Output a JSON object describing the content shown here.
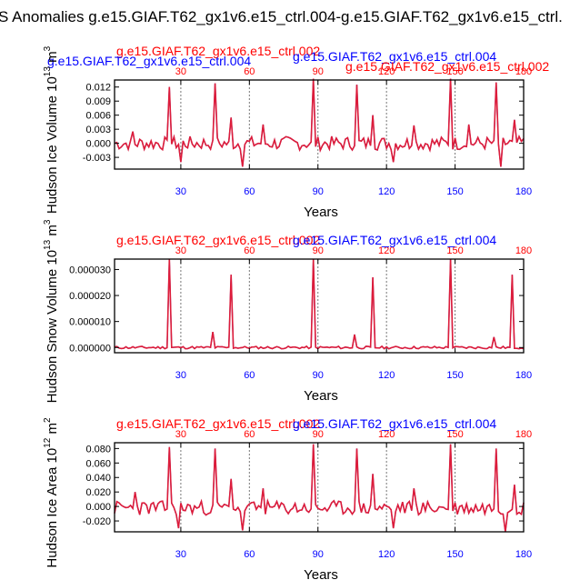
{
  "title": "S Anomalies g.e15.GIAF.T62_gx1v6.e15_ctrl.004-g.e15.GIAF.T62_gx1v6.e15_ctrl.",
  "colors": {
    "blue": "#0000ff",
    "red": "#ff0000",
    "line_red": "#dd1c3a",
    "line_blue": "#3a3acc",
    "axis": "#000000",
    "ref": "#777777"
  },
  "chart_data": [
    {
      "type": "line",
      "ylabel": "Hudson Ice Volume 10",
      "ylabel_sup": "13",
      "ylabel_unit": " m",
      "ylabel_unit_sup": "3",
      "xlabel": "Years",
      "legend_left": "g.e15.GIAF.T62_gx1v6.e15_ctrl.004",
      "legend_left_over": "g.e15.GIAF.T62_gx1v6.e15_ctrl.002",
      "legend_mid": "g.e15.GIAF.T62_gx1v6.e15_ctrl.004",
      "legend_right": "g.e15.GIAF.T62_gx1v6.e15_ctrl.002",
      "top_ticks": [
        "30",
        "60",
        "90",
        "120",
        "150",
        "180"
      ],
      "bottom_ticks": [
        "30",
        "60",
        "90",
        "120",
        "150",
        "180"
      ],
      "ytick_labels": [
        "0.012",
        "0.009",
        "0.006",
        "0.003",
        "0.000",
        "-0.003"
      ],
      "ytick_values": [
        0.012,
        0.009,
        0.006,
        0.003,
        0.0,
        -0.003
      ],
      "xlim": [
        1,
        180
      ],
      "ylim": [
        -0.0055,
        0.0135
      ],
      "ref_years": [
        30,
        60,
        90,
        120,
        150
      ],
      "peaks": [
        [
          25,
          0.012
        ],
        [
          45,
          0.0128
        ],
        [
          88,
          0.0138
        ],
        [
          107,
          0.0125
        ],
        [
          148,
          0.0138
        ],
        [
          168,
          0.013
        ],
        [
          52,
          0.0055
        ],
        [
          114,
          0.006
        ],
        [
          156,
          0.004
        ],
        [
          9,
          0.0025
        ],
        [
          66,
          0.004
        ],
        [
          132,
          0.0038
        ],
        [
          176,
          0.005
        ]
      ],
      "base": 0.0,
      "noise": 0.0015,
      "dips": [
        [
          30,
          -0.004
        ],
        [
          57,
          -0.005
        ],
        [
          123,
          -0.004
        ],
        [
          170,
          -0.005
        ]
      ],
      "seed": 7
    },
    {
      "type": "line",
      "ylabel": "Hudson Snow Volume 10",
      "ylabel_sup": "13",
      "ylabel_unit": " m",
      "ylabel_unit_sup": "3",
      "xlabel": "Years",
      "legend_left": "g.e15.GIAF.T62_gx1v6.e15_ctrl.002",
      "legend_left_over": "",
      "legend_mid": "g.e15.GIAF.T62_gx1v6.e15_ctrl.004",
      "legend_right": "",
      "top_ticks": [
        "30",
        "60",
        "90",
        "120",
        "150",
        "180"
      ],
      "bottom_ticks": [
        "30",
        "60",
        "90",
        "120",
        "150",
        "180"
      ],
      "ytick_labels": [
        "0.000030",
        "0.000020",
        "0.000010",
        "0.000000"
      ],
      "ytick_values": [
        3e-05,
        2e-05,
        1e-05,
        0.0
      ],
      "xlim": [
        1,
        180
      ],
      "ylim": [
        -2e-06,
        3.4e-05
      ],
      "ref_years": [
        30,
        60,
        90,
        120,
        150
      ],
      "peaks": [
        [
          25,
          3.4e-05
        ],
        [
          52,
          2.8e-05
        ],
        [
          88,
          3.4e-05
        ],
        [
          114,
          2.7e-05
        ],
        [
          148,
          3.4e-05
        ],
        [
          175,
          2.8e-05
        ],
        [
          44,
          6e-06
        ],
        [
          106,
          5e-06
        ],
        [
          167,
          4e-06
        ]
      ],
      "base": 0.0,
      "noise": 5e-07,
      "dips": [],
      "seed": 11
    },
    {
      "type": "line",
      "ylabel": "Hudson Ice Area 10",
      "ylabel_sup": "12",
      "ylabel_unit": " m",
      "ylabel_unit_sup": "2",
      "xlabel": "Years",
      "legend_left": "g.e15.GIAF.T62_gx1v6.e15_ctrl.002",
      "legend_left_over": "",
      "legend_mid": "g.e15.GIAF.T62_gx1v6.e15_ctrl.004",
      "legend_right": "",
      "top_ticks": [
        "30",
        "60",
        "90",
        "120",
        "150",
        "180"
      ],
      "bottom_ticks": [
        "30",
        "60",
        "90",
        "120",
        "150",
        "180"
      ],
      "ytick_labels": [
        "0.080",
        "0.060",
        "0.040",
        "0.020",
        "0.000",
        "-0.020"
      ],
      "ytick_values": [
        0.08,
        0.06,
        0.04,
        0.02,
        0.0,
        -0.02
      ],
      "xlim": [
        1,
        180
      ],
      "ylim": [
        -0.035,
        0.088
      ],
      "ref_years": [
        30,
        60,
        90,
        120,
        150
      ],
      "peaks": [
        [
          25,
          0.082
        ],
        [
          45,
          0.08
        ],
        [
          88,
          0.086
        ],
        [
          107,
          0.08
        ],
        [
          148,
          0.086
        ],
        [
          168,
          0.08
        ],
        [
          52,
          0.038
        ],
        [
          114,
          0.045
        ],
        [
          10,
          0.02
        ],
        [
          66,
          0.025
        ],
        [
          132,
          0.025
        ],
        [
          176,
          0.03
        ]
      ],
      "base": -0.002,
      "noise": 0.01,
      "dips": [
        [
          29,
          -0.03
        ],
        [
          57,
          -0.033
        ],
        [
          123,
          -0.03
        ],
        [
          172,
          -0.035
        ]
      ],
      "seed": 23
    }
  ]
}
